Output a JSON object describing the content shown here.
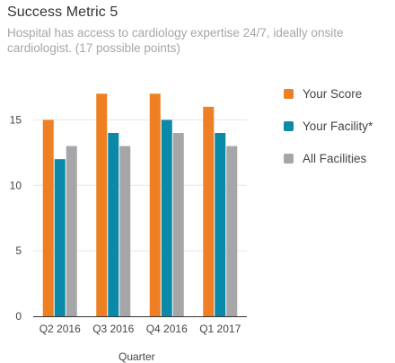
{
  "header": {
    "title": "Success Metric 5",
    "subtitle": "Hospital has access to cardiology expertise 24/7, ideally onsite cardiologist. (17 possible points)"
  },
  "chart_data": {
    "type": "bar",
    "title": "Success Metric 5",
    "subtitle": "Hospital has access to cardiology expertise 24/7, ideally onsite cardiologist. (17 possible points)",
    "xlabel": "Quarter",
    "ylabel": "",
    "categories": [
      "Q2 2016",
      "Q3 2016",
      "Q4 2016",
      "Q1 2017"
    ],
    "series": [
      {
        "name": "Your Score",
        "color": "#ee7f22",
        "values": [
          15,
          17,
          17,
          16
        ]
      },
      {
        "name": "Your Facility*",
        "color": "#0a8aa8",
        "values": [
          12,
          14,
          15,
          14
        ]
      },
      {
        "name": "All Facilities",
        "color": "#a6a6a8",
        "values": [
          13,
          13,
          14,
          13
        ]
      }
    ],
    "ylim": [
      0,
      17.5
    ],
    "yticks": [
      0,
      5,
      10,
      15
    ],
    "grid": true,
    "legend": "right"
  }
}
